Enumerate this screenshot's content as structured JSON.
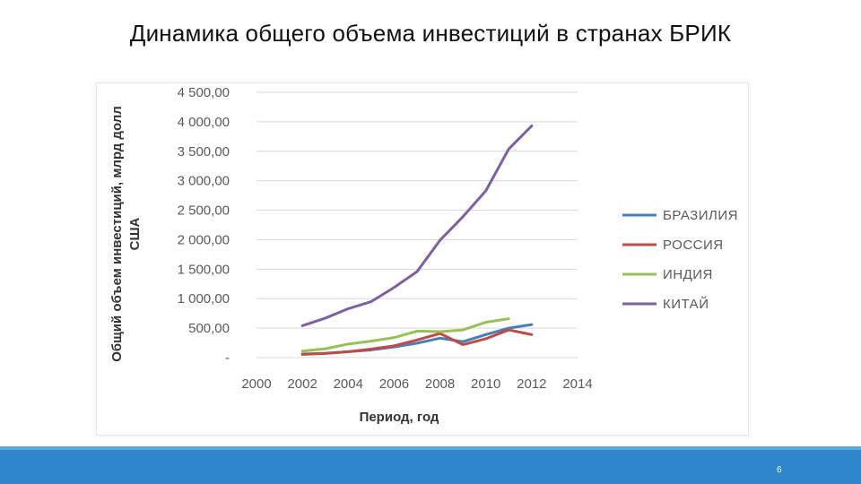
{
  "slide": {
    "title": "Динамика общего объема инвестиций в странах БРИК",
    "page_number": "6"
  },
  "colors": {
    "footer": "#2e86c9",
    "grid": "#d9d9d9"
  },
  "chart_data": {
    "type": "line",
    "title": "",
    "xlabel": "Период, год",
    "ylabel_lines": [
      "Общий объем инвестиций, млрд долл",
      "США"
    ],
    "xlim": [
      2000,
      2014
    ],
    "ylim": [
      0,
      4500
    ],
    "x_ticks": [
      2000,
      2002,
      2004,
      2006,
      2008,
      2010,
      2012,
      2014
    ],
    "x_tick_labels": [
      "2000",
      "2002",
      "2004",
      "2006",
      "2008",
      "2010",
      "2012",
      "2014"
    ],
    "y_ticks": [
      0,
      500,
      1000,
      1500,
      2000,
      2500,
      3000,
      3500,
      4000,
      4500
    ],
    "y_tick_labels": [
      "-",
      "500,00",
      "1 000,00",
      "1 500,00",
      "2 000,00",
      "2 500,00",
      "3 000,00",
      "3 500,00",
      "4 000,00",
      "4 500,00"
    ],
    "grid": true,
    "legend_position": "right",
    "series": [
      {
        "name": "БРАЗИЛИЯ",
        "color": "#4a7ebb",
        "x": [
          2002,
          2003,
          2004,
          2005,
          2006,
          2007,
          2008,
          2009,
          2010,
          2011,
          2012
        ],
        "values": [
          60,
          75,
          100,
          130,
          180,
          245,
          330,
          270,
          390,
          500,
          560
        ]
      },
      {
        "name": "РОССИЯ",
        "color": "#be4b48",
        "x": [
          2002,
          2003,
          2004,
          2005,
          2006,
          2007,
          2008,
          2009,
          2010,
          2011,
          2012
        ],
        "values": [
          55,
          70,
          100,
          145,
          200,
          300,
          410,
          220,
          320,
          470,
          390
        ]
      },
      {
        "name": "ИНДИЯ",
        "color": "#98c056",
        "x": [
          2002,
          2003,
          2004,
          2005,
          2006,
          2007,
          2008,
          2009,
          2010,
          2011
        ],
        "values": [
          110,
          150,
          230,
          280,
          340,
          450,
          440,
          470,
          600,
          660
        ]
      },
      {
        "name": "КИТАЙ",
        "color": "#7d60a0",
        "x": [
          2002,
          2003,
          2004,
          2005,
          2006,
          2007,
          2008,
          2009,
          2010,
          2011,
          2012
        ],
        "values": [
          540,
          670,
          830,
          950,
          1190,
          1460,
          1990,
          2390,
          2830,
          3540,
          3930
        ]
      }
    ]
  }
}
